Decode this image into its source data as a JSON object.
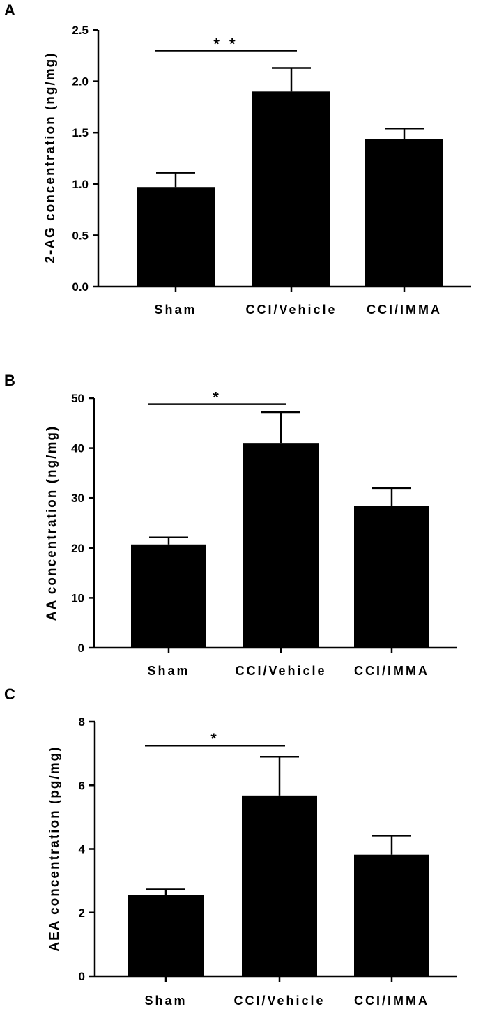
{
  "chart_data": [
    {
      "type": "bar",
      "panel": "A",
      "categories": [
        "Sham",
        "CCI/Vehicle",
        "CCI/IMMA"
      ],
      "values": [
        0.97,
        1.9,
        1.44
      ],
      "errors": [
        0.14,
        0.23,
        0.1
      ],
      "ylabel": "2-AG concentration (ng/mg)",
      "ylim": [
        0,
        2.5
      ],
      "yticks": [
        "0.0",
        "0.5",
        "1.0",
        "1.5",
        "2.0",
        "2.5"
      ],
      "significance": {
        "from": 0,
        "to": 1,
        "label": "* *",
        "level": 2.3
      }
    },
    {
      "type": "bar",
      "panel": "B",
      "categories": [
        "Sham",
        "CCI/Vehicle",
        "CCI/IMMA"
      ],
      "values": [
        20.7,
        40.9,
        28.4
      ],
      "errors": [
        1.4,
        6.3,
        3.6
      ],
      "ylabel": "AA concentration (ng/mg)",
      "ylim": [
        0,
        50
      ],
      "yticks": [
        "0",
        "10",
        "20",
        "30",
        "40",
        "50"
      ],
      "significance": {
        "from": 0,
        "to": 1,
        "label": "*",
        "level": 48.8
      }
    },
    {
      "type": "bar",
      "panel": "C",
      "categories": [
        "Sham",
        "CCI/Vehicle",
        "CCI/IMMA"
      ],
      "values": [
        2.55,
        5.68,
        3.82
      ],
      "errors": [
        0.18,
        1.22,
        0.6
      ],
      "ylabel": "AEA concentration (pg/mg)",
      "ylim": [
        0,
        8
      ],
      "yticks": [
        "0",
        "2",
        "4",
        "6",
        "8"
      ],
      "significance": {
        "from": 0,
        "to": 1,
        "label": "*",
        "level": 7.25
      }
    }
  ]
}
